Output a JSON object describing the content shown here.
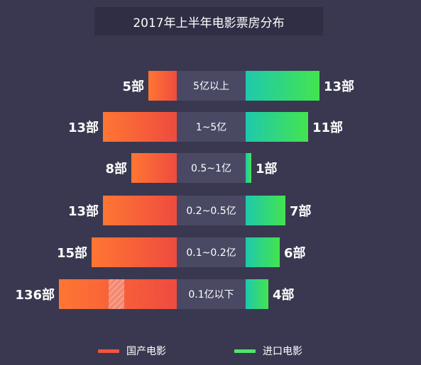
{
  "title": "2017年上半年电影票房分布",
  "chart_data": {
    "type": "bar",
    "categories": [
      "5亿以上",
      "1~5亿",
      "0.5~1亿",
      "0.2~0.5亿",
      "0.1~0.2亿",
      "0.1亿以下"
    ],
    "series": [
      {
        "name": "国产电影",
        "values": [
          5,
          13,
          8,
          13,
          15,
          136
        ],
        "value_labels": [
          "5部",
          "13部",
          "8部",
          "13部",
          "15部",
          "136部"
        ],
        "color": "#f1563f"
      },
      {
        "name": "进口电影",
        "values": [
          13,
          11,
          1,
          7,
          6,
          4
        ],
        "value_labels": [
          "13部",
          "11部",
          "1部",
          "7部",
          "6部",
          "4部"
        ],
        "color": "#2ed58c"
      }
    ],
    "axis_break": {
      "series": 0,
      "category": "0.1亿以下"
    }
  },
  "legend": [
    {
      "label": "国产电影",
      "color": "#f1563f"
    },
    {
      "label": "进口电影",
      "color": "#2ed58c"
    }
  ]
}
